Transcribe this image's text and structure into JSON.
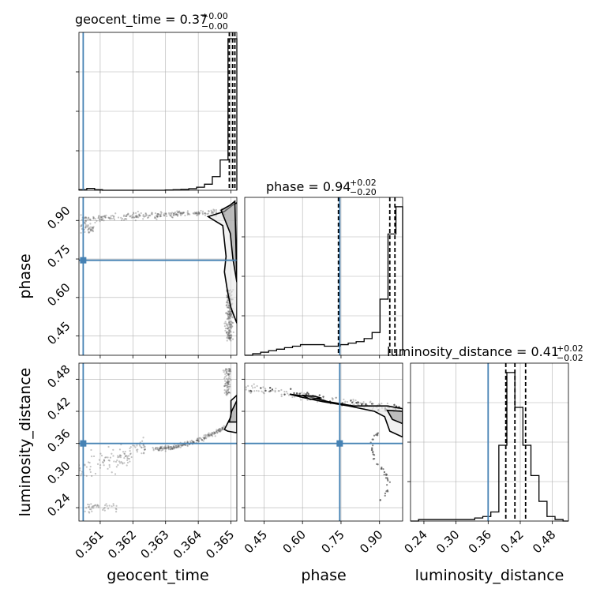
{
  "chart_data": {
    "type": "corner",
    "parameters": [
      "geocent_time",
      "phase",
      "luminosity_distance"
    ],
    "truth": {
      "geocent_time": 0.36048,
      "phase": 0.745,
      "luminosity_distance": 0.36
    },
    "colors": {
      "truth": "#4682b4",
      "hist": "#000000",
      "grid": "#b0b0b0",
      "samples": "#555555"
    },
    "axes": {
      "geocent_time": {
        "range": [
          0.36035,
          0.36518
        ],
        "ticks": [
          0.361,
          0.362,
          0.363,
          0.364,
          0.365
        ],
        "tick_labels": [
          "0.361",
          "0.362",
          "0.363",
          "0.364",
          "0.365"
        ],
        "label": "geocent_time"
      },
      "phase": {
        "range": [
          0.375,
          0.99
        ],
        "ticks": [
          0.45,
          0.6,
          0.75,
          0.9
        ],
        "tick_labels": [
          "0.45",
          "0.60",
          "0.75",
          "0.90"
        ],
        "label": "phase"
      },
      "luminosity_distance": {
        "range": [
          0.215,
          0.51
        ],
        "ticks": [
          0.24,
          0.3,
          0.36,
          0.42,
          0.48
        ],
        "tick_labels": [
          "0.24",
          "0.30",
          "0.36",
          "0.42",
          "0.48"
        ],
        "label": "luminosity_distance"
      }
    },
    "titles": [
      {
        "param": "geocent_time",
        "text": "geocent_time = 0.37",
        "sup": "+0.00",
        "sub": "−0.00"
      },
      {
        "param": "phase",
        "text": "phase = 0.94",
        "sup": "+0.02",
        "sub": "−0.20"
      },
      {
        "param": "luminosity_distance",
        "text": "luminosity_distance = 0.41",
        "sup": "+0.02",
        "sub": "−0.02"
      }
    ],
    "histograms": {
      "geocent_time": {
        "edges": [
          0.36035,
          0.36059,
          0.36083,
          0.36107,
          0.36131,
          0.36155,
          0.36179,
          0.36203,
          0.36227,
          0.36251,
          0.36275,
          0.36299,
          0.36323,
          0.36347,
          0.36371,
          0.36395,
          0.36419,
          0.36443,
          0.36467,
          0.36491,
          0.36518
        ],
        "counts": [
          0.004,
          0.012,
          0.004,
          0.0,
          0.0,
          0.0,
          0.0,
          0.0,
          0.0,
          0.0,
          0.0,
          0.002,
          0.004,
          0.006,
          0.01,
          0.02,
          0.04,
          0.09,
          0.2,
          1.0
        ],
        "quantiles": [
          0.36495,
          0.36505,
          0.36512
        ]
      },
      "phase": {
        "edges": [
          0.375,
          0.406,
          0.437,
          0.468,
          0.499,
          0.53,
          0.561,
          0.592,
          0.623,
          0.654,
          0.685,
          0.716,
          0.747,
          0.778,
          0.809,
          0.84,
          0.871,
          0.902,
          0.933,
          0.964,
          0.99
        ],
        "counts": [
          0.0,
          0.01,
          0.02,
          0.03,
          0.04,
          0.05,
          0.06,
          0.07,
          0.07,
          0.07,
          0.06,
          0.06,
          0.07,
          0.08,
          0.09,
          0.11,
          0.15,
          0.37,
          0.8,
          0.98
        ],
        "quantiles": [
          0.74,
          0.94,
          0.96
        ]
      },
      "luminosity_distance": {
        "edges": [
          0.215,
          0.23,
          0.245,
          0.26,
          0.275,
          0.29,
          0.305,
          0.32,
          0.335,
          0.35,
          0.365,
          0.38,
          0.395,
          0.41,
          0.425,
          0.44,
          0.455,
          0.47,
          0.485,
          0.5,
          0.51
        ],
        "counts": [
          0.0,
          0.01,
          0.01,
          0.01,
          0.01,
          0.01,
          0.01,
          0.01,
          0.02,
          0.03,
          0.06,
          0.5,
          0.98,
          0.75,
          0.5,
          0.3,
          0.13,
          0.03,
          0.01,
          0.0
        ],
        "quantiles": [
          0.393,
          0.41,
          0.43
        ]
      }
    },
    "contours": {
      "phase_vs_geocent_time": [
        [
          [
            0.3643,
            0.915
          ],
          [
            0.3648,
            0.935
          ],
          [
            0.36505,
            0.96
          ],
          [
            0.3652,
            0.97
          ],
          [
            0.36518,
            0.5
          ],
          [
            0.365,
            0.56
          ],
          [
            0.3649,
            0.62
          ],
          [
            0.3648,
            0.7
          ],
          [
            0.36485,
            0.76
          ],
          [
            0.3648,
            0.82
          ],
          [
            0.36475,
            0.88
          ],
          [
            0.3643,
            0.915
          ]
        ],
        [
          [
            0.3647,
            0.94
          ],
          [
            0.36498,
            0.96
          ],
          [
            0.36512,
            0.975
          ],
          [
            0.36518,
            0.66
          ],
          [
            0.36506,
            0.75
          ],
          [
            0.36498,
            0.85
          ],
          [
            0.3647,
            0.94
          ]
        ]
      ],
      "luminosity_distance_vs_geocent_time": [
        [
          [
            0.3648,
            0.386
          ],
          [
            0.365,
            0.41
          ],
          [
            0.365,
            0.44
          ],
          [
            0.36518,
            0.45
          ],
          [
            0.36518,
            0.38
          ],
          [
            0.3649,
            0.383
          ],
          [
            0.3648,
            0.386
          ]
        ],
        [
          [
            0.36495,
            0.4
          ],
          [
            0.36502,
            0.42
          ],
          [
            0.36518,
            0.44
          ],
          [
            0.36518,
            0.4
          ],
          [
            0.36495,
            0.4
          ]
        ]
      ],
      "luminosity_distance_vs_phase": [
        [
          [
            0.55,
            0.452
          ],
          [
            0.62,
            0.448
          ],
          [
            0.7,
            0.438
          ],
          [
            0.8,
            0.43
          ],
          [
            0.88,
            0.43
          ],
          [
            0.93,
            0.43
          ],
          [
            0.99,
            0.425
          ],
          [
            0.99,
            0.372
          ],
          [
            0.94,
            0.383
          ],
          [
            0.92,
            0.41
          ],
          [
            0.88,
            0.42
          ],
          [
            0.78,
            0.43
          ],
          [
            0.68,
            0.438
          ],
          [
            0.6,
            0.446
          ],
          [
            0.55,
            0.452
          ]
        ],
        [
          [
            0.6,
            0.45
          ],
          [
            0.65,
            0.448
          ],
          [
            0.67,
            0.445
          ],
          [
            0.63,
            0.442
          ],
          [
            0.6,
            0.45
          ]
        ],
        [
          [
            0.93,
            0.422
          ],
          [
            0.99,
            0.42
          ],
          [
            0.99,
            0.397
          ],
          [
            0.95,
            0.405
          ],
          [
            0.93,
            0.422
          ]
        ]
      ]
    }
  }
}
